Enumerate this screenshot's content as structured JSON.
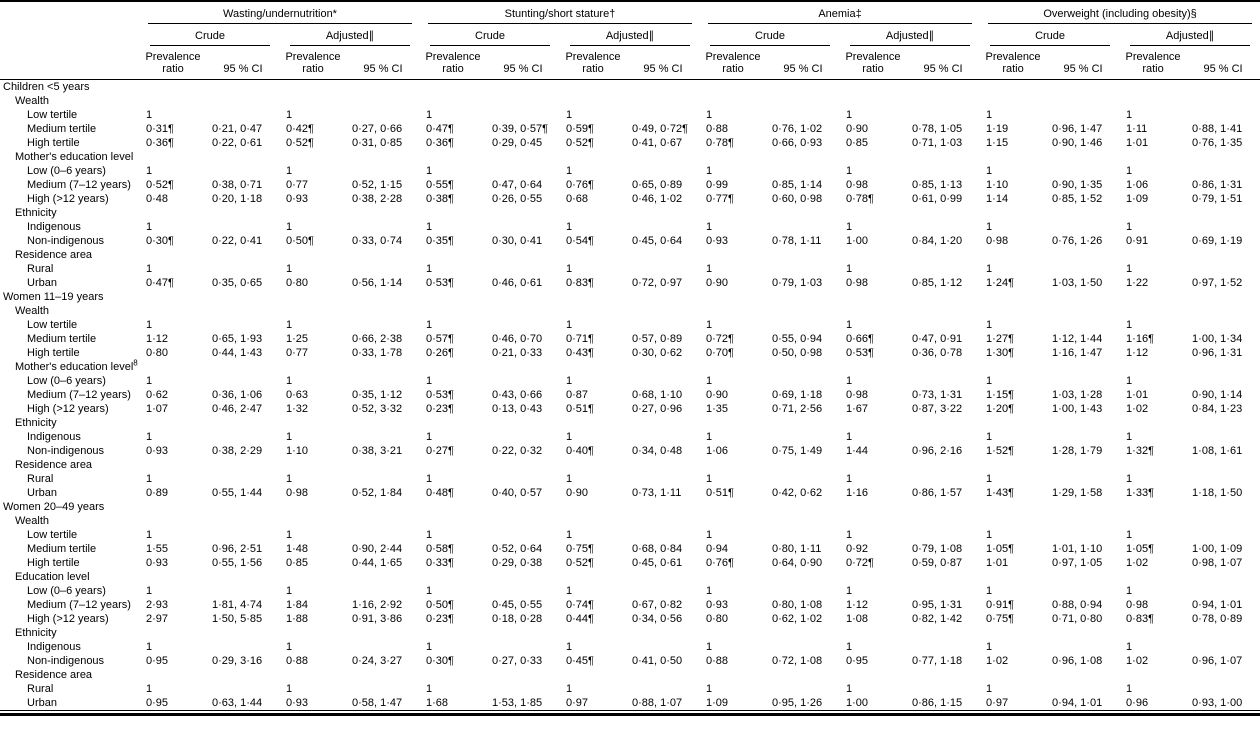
{
  "table": {
    "groups": [
      {
        "label": "Wasting/undernutrition*"
      },
      {
        "label": "Stunting/short stature†"
      },
      {
        "label": "Anemia‡"
      },
      {
        "label": "Overweight (including obesity)§"
      }
    ],
    "models": {
      "crude": "Crude",
      "adjusted": "Adjusted∥"
    },
    "stat_headers": {
      "prevalence_ratio": "Prevalence\nratio",
      "ci": "95 % CI"
    },
    "sections": [
      {
        "title": "Children <5 years",
        "categories": [
          {
            "label": "Wealth",
            "sup": "",
            "rows": [
              {
                "label": "Low tertile",
                "values": [
                  "1",
                  "",
                  "1",
                  "",
                  "1",
                  "",
                  "1",
                  "",
                  "1",
                  "",
                  "1",
                  "",
                  "1",
                  "",
                  "1",
                  ""
                ]
              },
              {
                "label": "Medium tertile",
                "values": [
                  "0·31¶",
                  "0·21, 0·47",
                  "0·42¶",
                  "0·27, 0·66",
                  "0·47¶",
                  "0·39, 0·57¶",
                  "0·59¶",
                  "0·49, 0·72¶",
                  "0·88",
                  "0·76, 1·02",
                  "0·90",
                  "0·78, 1·05",
                  "1·19",
                  "0·96, 1·47",
                  "1·11",
                  "0·88, 1·41"
                ]
              },
              {
                "label": "High tertile",
                "values": [
                  "0·36¶",
                  "0·22, 0·61",
                  "0·52¶",
                  "0·31, 0·85",
                  "0·36¶",
                  "0·29, 0·45",
                  "0·52¶",
                  "0·41, 0·67",
                  "0·78¶",
                  "0·66, 0·93",
                  "0·85",
                  "0·71, 1·03",
                  "1·15",
                  "0·90, 1·46",
                  "1·01",
                  "0·76, 1·35"
                ]
              }
            ]
          },
          {
            "label": "Mother's education level",
            "sup": "",
            "rows": [
              {
                "label": "Low (0–6 years)",
                "values": [
                  "1",
                  "",
                  "1",
                  "",
                  "1",
                  "",
                  "1",
                  "",
                  "1",
                  "",
                  "1",
                  "",
                  "1",
                  "",
                  "1",
                  ""
                ]
              },
              {
                "label": "Medium (7–12 years)",
                "values": [
                  "0·52¶",
                  "0·38, 0·71",
                  "0·77",
                  "0·52, 1·15",
                  "0·55¶",
                  "0·47, 0·64",
                  "0·76¶",
                  "0·65, 0·89",
                  "0·99",
                  "0·85, 1·14",
                  "0·98",
                  "0·85, 1·13",
                  "1·10",
                  "0·90, 1·35",
                  "1·06",
                  "0·86, 1·31"
                ]
              },
              {
                "label": "High (>12 years)",
                "values": [
                  "0·48",
                  "0·20, 1·18",
                  "0·93",
                  "0·38, 2·28",
                  "0·38¶",
                  "0·26, 0·55",
                  "0·68",
                  "0·46, 1·02",
                  "0·77¶",
                  "0·60, 0·98",
                  "0·78¶",
                  "0·61, 0·99",
                  "1·14",
                  "0·85, 1·52",
                  "1·09",
                  "0·79, 1·51"
                ]
              }
            ]
          },
          {
            "label": "Ethnicity",
            "sup": "",
            "rows": [
              {
                "label": "Indigenous",
                "values": [
                  "1",
                  "",
                  "1",
                  "",
                  "1",
                  "",
                  "1",
                  "",
                  "1",
                  "",
                  "1",
                  "",
                  "1",
                  "",
                  "1",
                  ""
                ]
              },
              {
                "label": "Non-indigenous",
                "values": [
                  "0·30¶",
                  "0·22, 0·41",
                  "0·50¶",
                  "0·33, 0·74",
                  "0·35¶",
                  "0·30, 0·41",
                  "0·54¶",
                  "0·45, 0·64",
                  "0·93",
                  "0·78, 1·11",
                  "1·00",
                  "0·84, 1·20",
                  "0·98",
                  "0·76, 1·26",
                  "0·91",
                  "0·69, 1·19"
                ]
              }
            ]
          },
          {
            "label": "Residence area",
            "sup": "",
            "rows": [
              {
                "label": "Rural",
                "values": [
                  "1",
                  "",
                  "1",
                  "",
                  "1",
                  "",
                  "1",
                  "",
                  "1",
                  "",
                  "1",
                  "",
                  "1",
                  "",
                  "1",
                  ""
                ]
              },
              {
                "label": "Urban",
                "values": [
                  "0·47¶",
                  "0·35, 0·65",
                  "0·80",
                  "0·56, 1·14",
                  "0·53¶",
                  "0·46, 0·61",
                  "0·83¶",
                  "0·72, 0·97",
                  "0·90",
                  "0·79, 1·03",
                  "0·98",
                  "0·85, 1·12",
                  "1·24¶",
                  "1·03, 1·50",
                  "1·22",
                  "0·97, 1·52"
                ]
              }
            ]
          }
        ]
      },
      {
        "title": "Women 11–19 years",
        "categories": [
          {
            "label": "Wealth",
            "sup": "",
            "rows": [
              {
                "label": "Low tertile",
                "values": [
                  "1",
                  "",
                  "1",
                  "",
                  "1",
                  "",
                  "1",
                  "",
                  "1",
                  "",
                  "1",
                  "",
                  "1",
                  "",
                  "1",
                  ""
                ]
              },
              {
                "label": "Medium tertile",
                "values": [
                  "1·12",
                  "0·65, 1·93",
                  "1·25",
                  "0·66, 2·38",
                  "0·57¶",
                  "0·46, 0·70",
                  "0·71¶",
                  "0·57, 0·89",
                  "0·72¶",
                  "0·55, 0·94",
                  "0·66¶",
                  "0·47, 0·91",
                  "1·27¶",
                  "1·12, 1·44",
                  "1·16¶",
                  "1·00, 1·34"
                ]
              },
              {
                "label": "High tertile",
                "values": [
                  "0·80",
                  "0·44, 1·43",
                  "0·77",
                  "0·33, 1·78",
                  "0·26¶",
                  "0·21, 0·33",
                  "0·43¶",
                  "0·30, 0·62",
                  "0·70¶",
                  "0·50, 0·98",
                  "0·53¶",
                  "0·36, 0·78",
                  "1·30¶",
                  "1·16, 1·47",
                  "1·12",
                  "0·96, 1·31"
                ]
              }
            ]
          },
          {
            "label": "Mother's education level",
            "sup": "8",
            "rows": [
              {
                "label": "Low (0–6 years)",
                "values": [
                  "1",
                  "",
                  "1",
                  "",
                  "1",
                  "",
                  "1",
                  "",
                  "1",
                  "",
                  "1",
                  "",
                  "1",
                  "",
                  "1",
                  ""
                ]
              },
              {
                "label": "Medium (7–12 years)",
                "values": [
                  "0·62",
                  "0·36, 1·06",
                  "0·63",
                  "0·35, 1·12",
                  "0·53¶",
                  "0·43, 0·66",
                  "0·87",
                  "0·68, 1·10",
                  "0·90",
                  "0·69, 1·18",
                  "0·98",
                  "0·73, 1·31",
                  "1·15¶",
                  "1·03, 1·28",
                  "1·01",
                  "0·90, 1·14"
                ]
              },
              {
                "label": "High (>12 years)",
                "values": [
                  "1·07",
                  "0·46, 2·47",
                  "1·32",
                  "0·52, 3·32",
                  "0·23¶",
                  "0·13, 0·43",
                  "0·51¶",
                  "0·27, 0·96",
                  "1·35",
                  "0·71, 2·56",
                  "1·67",
                  "0·87, 3·22",
                  "1·20¶",
                  "1·00, 1·43",
                  "1·02",
                  "0·84, 1·23"
                ]
              }
            ]
          },
          {
            "label": "Ethnicity",
            "sup": "",
            "rows": [
              {
                "label": "Indigenous",
                "values": [
                  "1",
                  "",
                  "1",
                  "",
                  "1",
                  "",
                  "1",
                  "",
                  "1",
                  "",
                  "1",
                  "",
                  "1",
                  "",
                  "1",
                  ""
                ]
              },
              {
                "label": "Non-indigenous",
                "values": [
                  "0·93",
                  "0·38, 2·29",
                  "1·10",
                  "0·38, 3·21",
                  "0·27¶",
                  "0·22, 0·32",
                  "0·40¶",
                  "0·34, 0·48",
                  "1·06",
                  "0·75, 1·49",
                  "1·44",
                  "0·96, 2·16",
                  "1·52¶",
                  "1·28, 1·79",
                  "1·32¶",
                  "1·08, 1·61"
                ]
              }
            ]
          },
          {
            "label": "Residence area",
            "sup": "",
            "rows": [
              {
                "label": "Rural",
                "values": [
                  "1",
                  "",
                  "1",
                  "",
                  "1",
                  "",
                  "1",
                  "",
                  "1",
                  "",
                  "1",
                  "",
                  "1",
                  "",
                  "1",
                  ""
                ]
              },
              {
                "label": "Urban",
                "values": [
                  "0·89",
                  "0·55, 1·44",
                  "0·98",
                  "0·52, 1·84",
                  "0·48¶",
                  "0·40, 0·57",
                  "0·90",
                  "0·73, 1·11",
                  "0·51¶",
                  "0·42, 0·62",
                  "1·16",
                  "0·86, 1·57",
                  "1·43¶",
                  "1·29, 1·58",
                  "1·33¶",
                  "1·18, 1·50"
                ]
              }
            ]
          }
        ]
      },
      {
        "title": "Women 20–49 years",
        "categories": [
          {
            "label": "Wealth",
            "sup": "",
            "rows": [
              {
                "label": "Low tertile",
                "values": [
                  "1",
                  "",
                  "1",
                  "",
                  "1",
                  "",
                  "1",
                  "",
                  "1",
                  "",
                  "1",
                  "",
                  "1",
                  "",
                  "1",
                  ""
                ]
              },
              {
                "label": "Medium tertile",
                "values": [
                  "1·55",
                  "0·96, 2·51",
                  "1·48",
                  "0·90, 2·44",
                  "0·58¶",
                  "0·52, 0·64",
                  "0·75¶",
                  "0·68, 0·84",
                  "0·94",
                  "0·80, 1·11",
                  "0·92",
                  "0·79, 1·08",
                  "1·05¶",
                  "1·01, 1·10",
                  "1·05¶",
                  "1·00, 1·09"
                ]
              },
              {
                "label": "High tertile",
                "values": [
                  "0·93",
                  "0·55, 1·56",
                  "0·85",
                  "0·44, 1·65",
                  "0·33¶",
                  "0·29, 0·38",
                  "0·52¶",
                  "0·45, 0·61",
                  "0·76¶",
                  "0·64, 0·90",
                  "0·72¶",
                  "0·59, 0·87",
                  "1·01",
                  "0·97, 1·05",
                  "1·02",
                  "0·98, 1·07"
                ]
              }
            ]
          },
          {
            "label": "Education level",
            "sup": "",
            "rows": [
              {
                "label": "Low (0–6 years)",
                "values": [
                  "1",
                  "",
                  "1",
                  "",
                  "1",
                  "",
                  "1",
                  "",
                  "1",
                  "",
                  "1",
                  "",
                  "1",
                  "",
                  "1",
                  ""
                ]
              },
              {
                "label": "Medium (7–12 years)",
                "values": [
                  "2·93",
                  "1·81, 4·74",
                  "1·84",
                  "1·16, 2·92",
                  "0·50¶",
                  "0·45, 0·55",
                  "0·74¶",
                  "0·67, 0·82",
                  "0·93",
                  "0·80, 1·08",
                  "1·12",
                  "0·95, 1·31",
                  "0·91¶",
                  "0·88, 0·94",
                  "0·98",
                  "0·94, 1·01"
                ]
              },
              {
                "label": "High (>12 years)",
                "values": [
                  "2·97",
                  "1·50, 5·85",
                  "1·88",
                  "0·91, 3·86",
                  "0·23¶",
                  "0·18, 0·28",
                  "0·44¶",
                  "0·34, 0·56",
                  "0·80",
                  "0·62, 1·02",
                  "1·08",
                  "0·82, 1·42",
                  "0·75¶",
                  "0·71, 0·80",
                  "0·83¶",
                  "0·78, 0·89"
                ]
              }
            ]
          },
          {
            "label": "Ethnicity",
            "sup": "",
            "rows": [
              {
                "label": "Indigenous",
                "values": [
                  "1",
                  "",
                  "1",
                  "",
                  "1",
                  "",
                  "1",
                  "",
                  "1",
                  "",
                  "1",
                  "",
                  "1",
                  "",
                  "1",
                  ""
                ]
              },
              {
                "label": "Non-indigenous",
                "values": [
                  "0·95",
                  "0·29, 3·16",
                  "0·88",
                  "0·24, 3·27",
                  "0·30¶",
                  "0·27, 0·33",
                  "0·45¶",
                  "0·41, 0·50",
                  "0·88",
                  "0·72, 1·08",
                  "0·95",
                  "0·77, 1·18",
                  "1·02",
                  "0·96, 1·08",
                  "1·02",
                  "0·96, 1·07"
                ]
              }
            ]
          },
          {
            "label": "Residence area",
            "sup": "",
            "rows": [
              {
                "label": "Rural",
                "values": [
                  "1",
                  "",
                  "1",
                  "",
                  "1",
                  "",
                  "1",
                  "",
                  "1",
                  "",
                  "1",
                  "",
                  "1",
                  "",
                  "1",
                  ""
                ]
              },
              {
                "label": "Urban",
                "values": [
                  "0·95",
                  "0·63, 1·44",
                  "0·93",
                  "0·58, 1·47",
                  "1·68",
                  "1·53, 1·85",
                  "0·97",
                  "0·88, 1·07",
                  "1·09",
                  "0·95, 1·26",
                  "1·00",
                  "0·86, 1·15",
                  "0·97",
                  "0·94, 1·01",
                  "0·96",
                  "0·93, 1·00"
                ]
              }
            ]
          }
        ]
      }
    ]
  }
}
